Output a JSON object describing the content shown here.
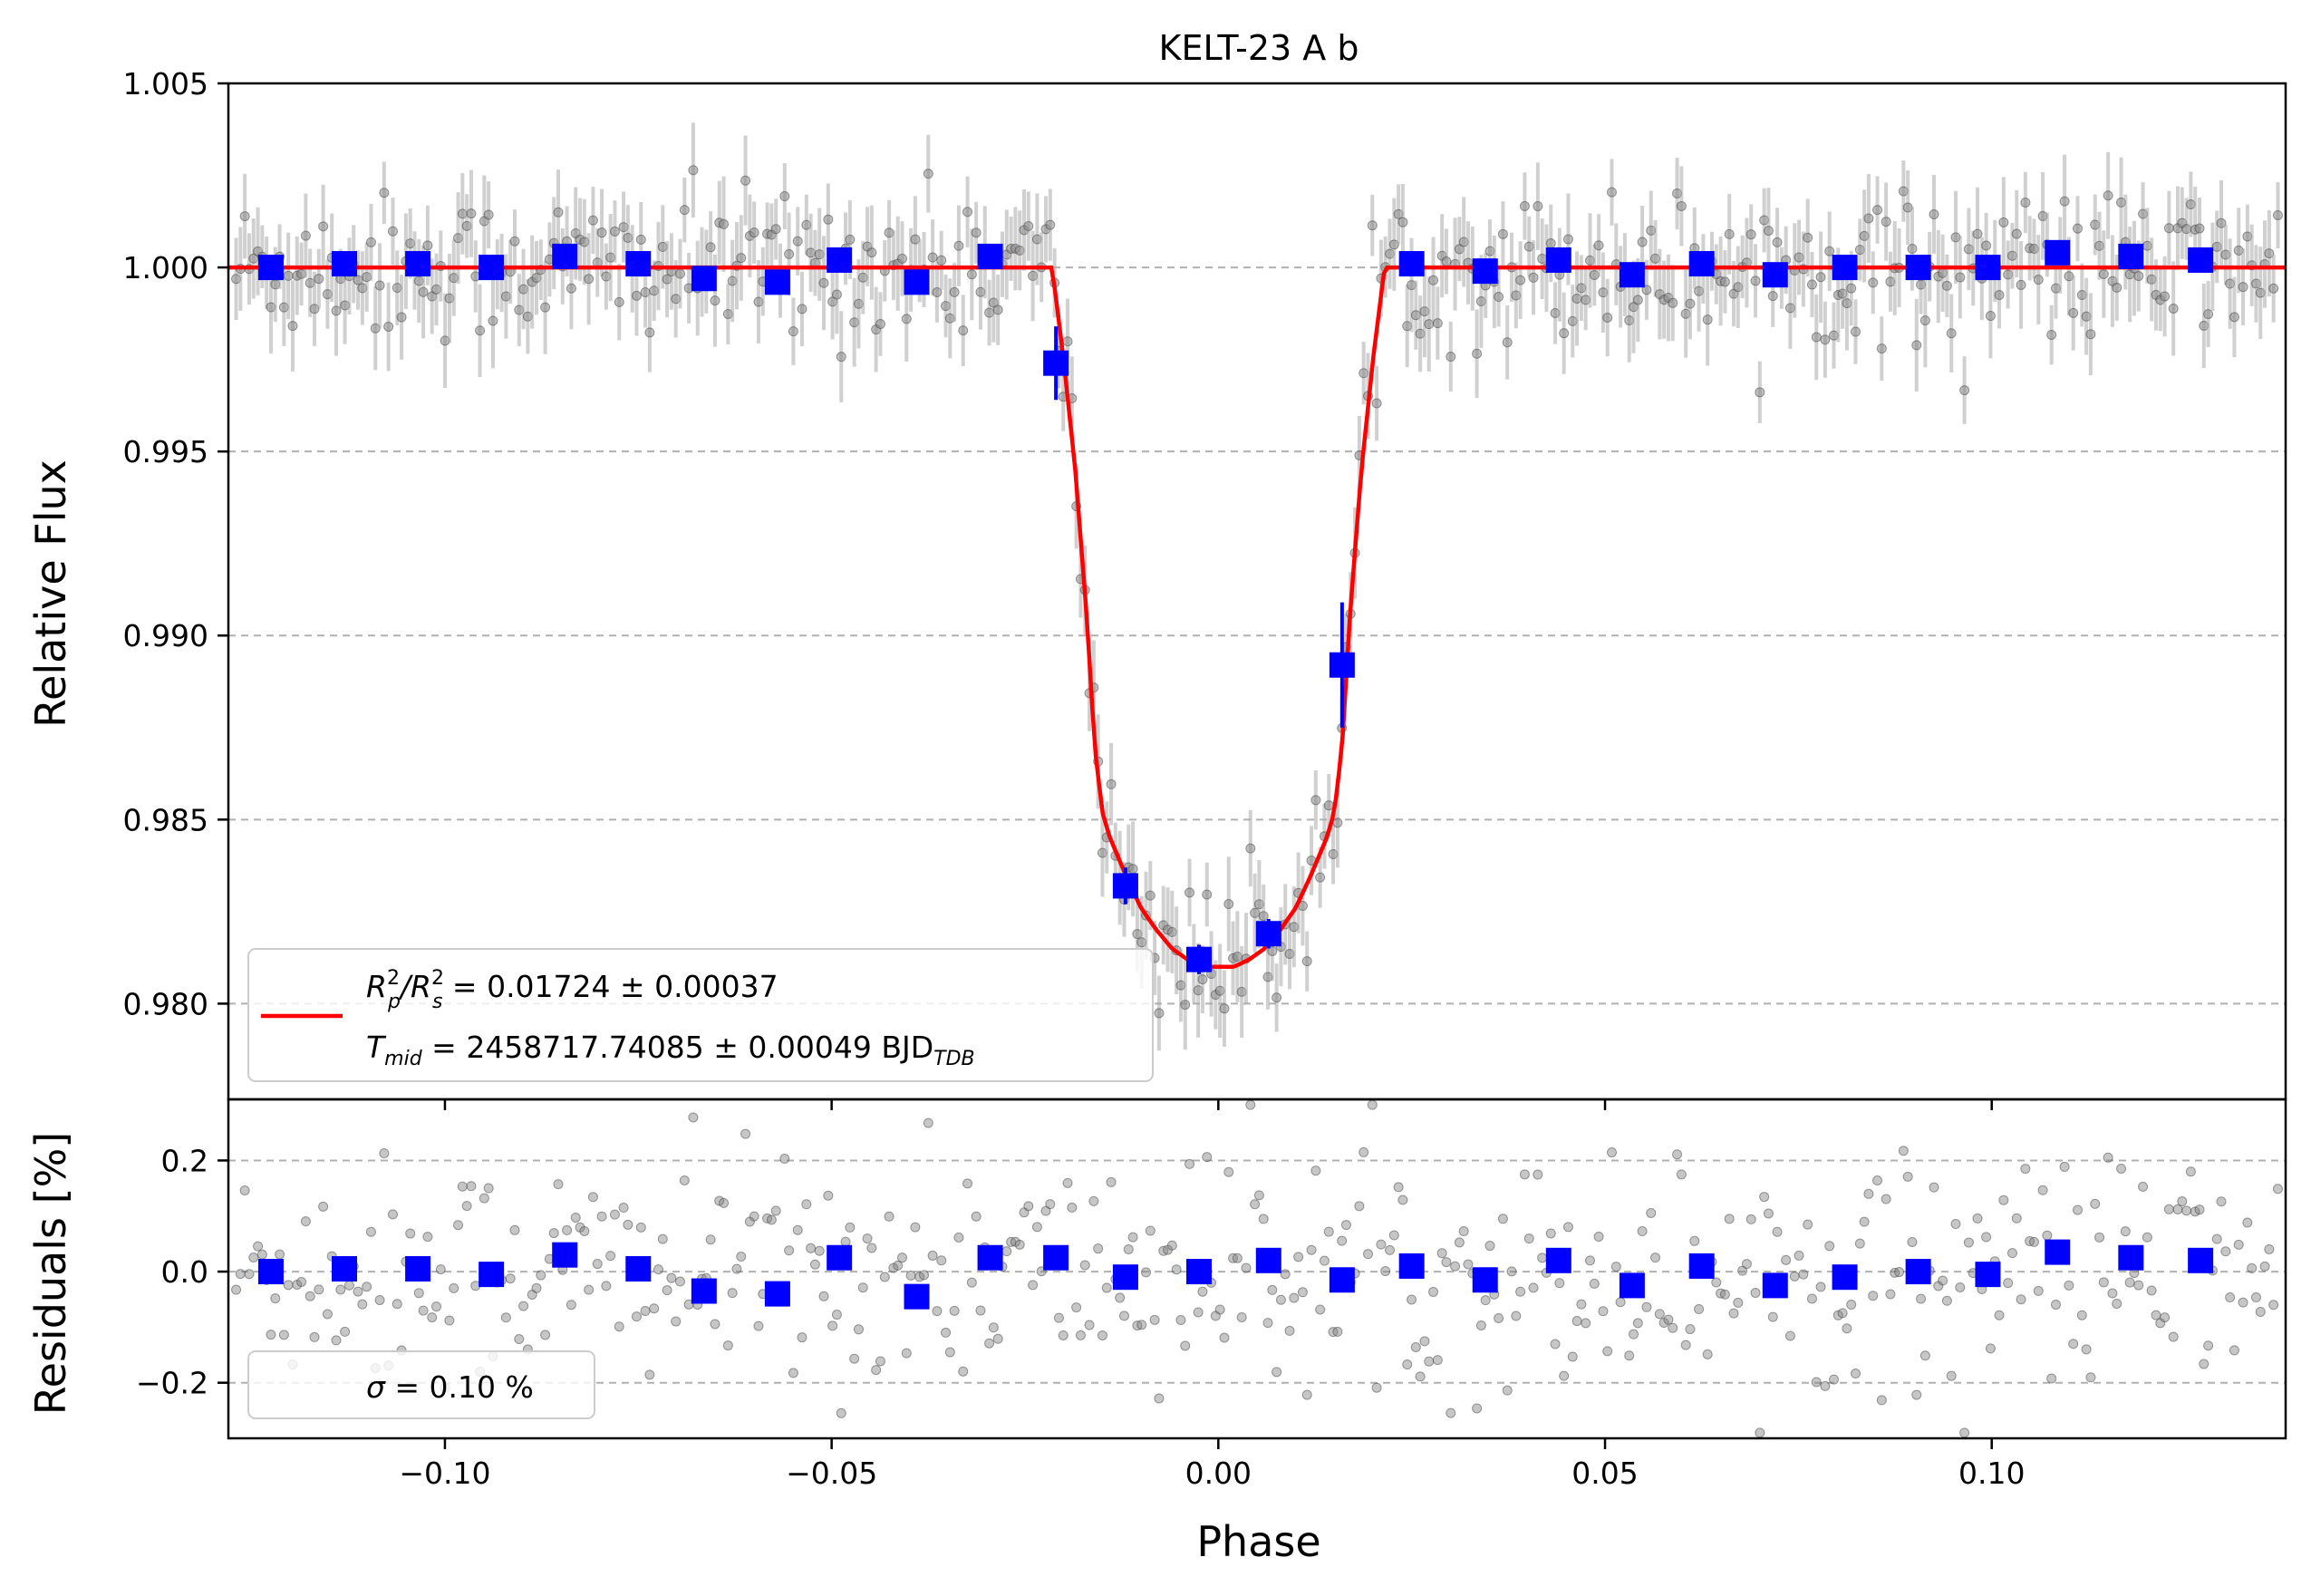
{
  "chart_data": [
    {
      "type": "scatter",
      "panel": "main",
      "title": "KELT-23 A b",
      "xlabel": "",
      "ylabel": "Relative Flux",
      "xlim": [
        -0.128,
        0.138
      ],
      "ylim": [
        0.9774,
        1.005
      ],
      "yticks": [
        0.98,
        0.985,
        0.99,
        0.995,
        1.0,
        1.005
      ],
      "ytick_labels": [
        "0.980",
        "0.985",
        "0.990",
        "0.995",
        "1.000",
        "1.005"
      ],
      "grid": "horizontal dashed",
      "legend": {
        "placement": "lower-left",
        "line1": {
          "main": "R",
          "sup1": "2",
          "sub1": "p",
          "mid": "/R",
          "sup2": "2",
          "sub2": "s",
          "rest": " = 0.01724 ± 0.00037"
        },
        "line2": {
          "main": "T",
          "sub1": "mid",
          "rest": " = 2458717.74085 ± 0.00049 BJD",
          "sub2": "TDB"
        }
      },
      "model": {
        "color": "#ff0000",
        "x": [
          -0.128,
          -0.0215,
          -0.02,
          -0.0185,
          -0.017,
          -0.016,
          -0.015,
          -0.014,
          -0.012,
          -0.01,
          -0.008,
          -0.006,
          -0.004,
          -0.002,
          0.0,
          0.002,
          0.004,
          0.006,
          0.008,
          0.01,
          0.012,
          0.014,
          0.015,
          0.016,
          0.017,
          0.0185,
          0.02,
          0.0215,
          0.138
        ],
        "y": [
          1.0,
          1.0,
          0.9975,
          0.9945,
          0.9905,
          0.987,
          0.9852,
          0.9845,
          0.9835,
          0.9826,
          0.982,
          0.9815,
          0.9812,
          0.981,
          0.981,
          0.981,
          0.9812,
          0.9815,
          0.982,
          0.9826,
          0.9835,
          0.9845,
          0.9852,
          0.987,
          0.9905,
          0.9945,
          0.9975,
          1.0,
          1.0
        ]
      },
      "binned": {
        "color": "#0000ff",
        "x": [
          -0.1225,
          -0.113,
          -0.1035,
          -0.094,
          -0.0845,
          -0.075,
          -0.0665,
          -0.057,
          -0.049,
          -0.039,
          -0.0295,
          -0.021,
          -0.012,
          -0.0025,
          0.0065,
          0.016,
          0.025,
          0.0345,
          0.044,
          0.0535,
          0.0625,
          0.072,
          0.081,
          0.0905,
          0.0995,
          0.1085,
          0.118,
          0.127
        ],
        "y": [
          1.0,
          1.0001,
          1.0001,
          1.0,
          1.0003,
          1.0001,
          0.9997,
          0.9996,
          1.0002,
          0.9996,
          1.0003,
          0.9974,
          0.9832,
          0.9812,
          0.9819,
          0.9892,
          1.0001,
          0.9999,
          1.0002,
          0.9998,
          1.0001,
          0.9998,
          1.0,
          1.0,
          1.0,
          1.0004,
          1.0003,
          1.0002
        ],
        "yerr": [
          0.0003,
          0.0003,
          0.0003,
          0.0003,
          0.0003,
          0.0003,
          0.0003,
          0.0003,
          0.0003,
          0.0003,
          0.0003,
          0.001,
          0.0005,
          0.0004,
          0.0004,
          0.0017,
          0.0003,
          0.0003,
          0.0003,
          0.0003,
          0.0003,
          0.0003,
          0.0003,
          0.0003,
          0.0003,
          0.0003,
          0.0003,
          0.0003
        ]
      },
      "raw": {
        "color": "#808080",
        "description": "unbinned photometry, ~470 points, scatter 0.0010, errors ~0.0010",
        "n": 470,
        "scatter": 0.001,
        "err": 0.001
      },
      "xticks": [
        -0.1,
        -0.05,
        0.0,
        0.05,
        0.1
      ]
    },
    {
      "type": "scatter",
      "panel": "residuals",
      "xlabel": "Phase",
      "ylabel": "Residuals [%]",
      "xlim": [
        -0.128,
        0.138
      ],
      "ylim": [
        -0.3,
        0.31
      ],
      "yticks": [
        -0.2,
        0.0,
        0.2
      ],
      "ytick_labels": [
        "−0.2",
        "0.0",
        "0.2"
      ],
      "xticks": [
        -0.1,
        -0.05,
        0.0,
        0.05,
        0.1
      ],
      "xtick_labels": [
        "−0.10",
        "−0.05",
        "0.00",
        "0.05",
        "0.10"
      ],
      "grid": "horizontal dashed",
      "legend": {
        "placement": "lower-left",
        "symbol": "σ",
        "text": " = 0.10 %"
      },
      "binned": {
        "color": "#0000ff",
        "x": [
          -0.1225,
          -0.113,
          -0.1035,
          -0.094,
          -0.0845,
          -0.075,
          -0.0665,
          -0.057,
          -0.049,
          -0.039,
          -0.0295,
          -0.021,
          -0.012,
          -0.0025,
          0.0065,
          0.016,
          0.025,
          0.0345,
          0.044,
          0.0535,
          0.0625,
          0.072,
          0.081,
          0.0905,
          0.0995,
          0.1085,
          0.118,
          0.127
        ],
        "y": [
          0.0,
          0.005,
          0.005,
          -0.005,
          0.03,
          0.005,
          -0.035,
          -0.04,
          0.025,
          -0.045,
          0.025,
          0.025,
          -0.01,
          0.0,
          0.02,
          -0.015,
          0.01,
          -0.015,
          0.02,
          -0.025,
          0.01,
          -0.025,
          -0.01,
          0.0,
          -0.005,
          0.035,
          0.025,
          0.02
        ]
      },
      "raw": {
        "color": "#808080",
        "n": 470,
        "scatter": 0.1
      }
    }
  ]
}
